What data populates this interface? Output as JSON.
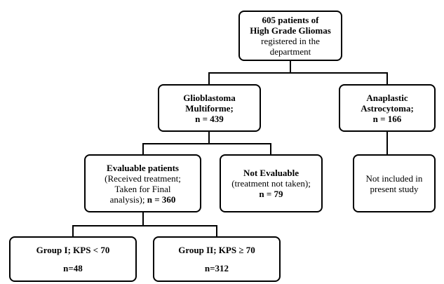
{
  "nodes": [
    {
      "id": "top",
      "lines": [
        [
          {
            "text": "605 patients of",
            "bold": true
          }
        ],
        [
          {
            "text": "High Grade Gliomas",
            "bold": true
          }
        ],
        [
          {
            "text": "registered in the",
            "bold": false
          }
        ],
        [
          {
            "text": "department",
            "bold": false
          }
        ]
      ]
    },
    {
      "id": "gbm",
      "lines": [
        [
          {
            "text": "Glioblastoma",
            "bold": true
          }
        ],
        [
          {
            "text": "Multiforme;",
            "bold": true
          }
        ],
        [
          {
            "text": "n = 439",
            "bold": true
          }
        ]
      ]
    },
    {
      "id": "aa",
      "lines": [
        [
          {
            "text": "Anaplastic",
            "bold": true
          }
        ],
        [
          {
            "text": "Astrocytoma;",
            "bold": true
          }
        ],
        [
          {
            "text": "n = 166",
            "bold": true
          }
        ]
      ]
    },
    {
      "id": "eval",
      "lines": [
        [
          {
            "text": "Evaluable patients",
            "bold": true
          }
        ],
        [
          {
            "text": "(Received treatment;",
            "bold": false
          }
        ],
        [
          {
            "text": "Taken for Final",
            "bold": false
          }
        ],
        [
          {
            "text": "analysis); ",
            "bold": false
          },
          {
            "text": "n = 360",
            "bold": true
          }
        ]
      ]
    },
    {
      "id": "noteval",
      "lines": [
        [
          {
            "text": "Not Evaluable",
            "bold": true
          }
        ],
        [
          {
            "text": "(treatment not taken);",
            "bold": false
          }
        ],
        [
          {
            "text": "n = 79",
            "bold": true
          }
        ]
      ]
    },
    {
      "id": "excluded",
      "lines": [
        [
          {
            "text": "Not included in",
            "bold": false
          }
        ],
        [
          {
            "text": "present study",
            "bold": false
          }
        ]
      ]
    },
    {
      "id": "g1",
      "lines": [
        [
          {
            "text": "Group I; KPS < 70",
            "bold": true
          }
        ],
        [
          {
            "text": "n=48",
            "bold": true
          }
        ]
      ]
    },
    {
      "id": "g2",
      "lines": [
        [
          {
            "text": "Group II; KPS ≥ 70",
            "bold": true
          }
        ],
        [
          {
            "text": "n=312",
            "bold": true
          }
        ]
      ]
    }
  ]
}
